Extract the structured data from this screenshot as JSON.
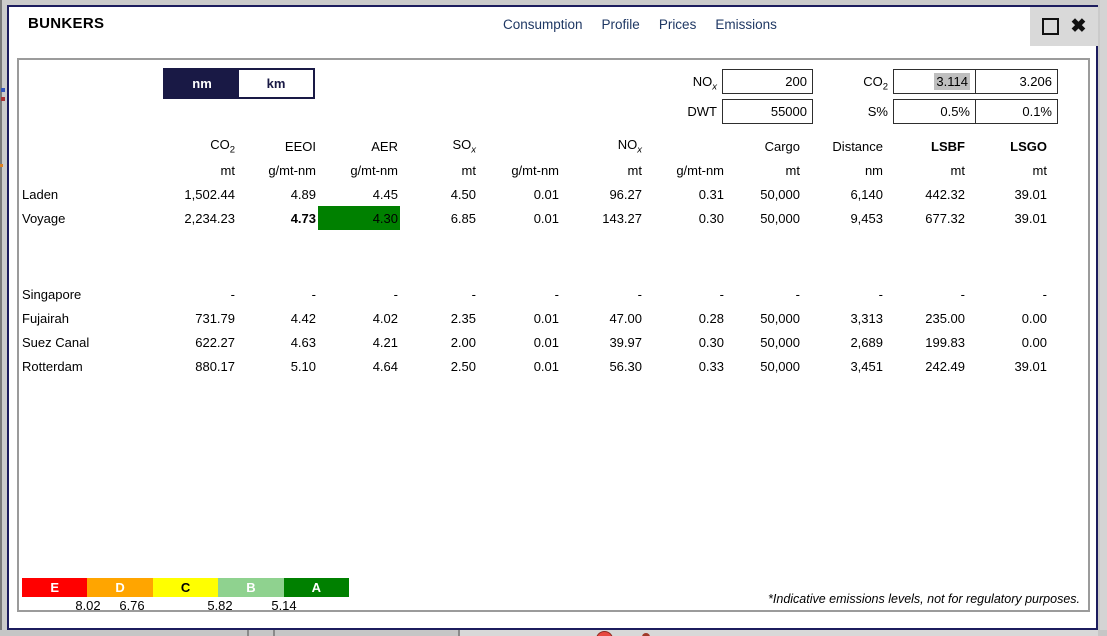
{
  "window": {
    "title": "BUNKERS",
    "nav": [
      "Consumption",
      "Profile",
      "Prices",
      "Emissions"
    ],
    "close_glyph": "✖"
  },
  "toggle": {
    "selected": "nm",
    "options": [
      "nm",
      "km"
    ]
  },
  "params": {
    "nox": {
      "base": "NO",
      "sub": "x",
      "value": "200"
    },
    "dwt": {
      "base": "DWT",
      "sub": "",
      "value": "55000"
    },
    "co2": {
      "base": "CO",
      "sub": "2",
      "value1": "3.114",
      "value2": "3.206",
      "value1_selected": true
    },
    "spct": {
      "base": "S%",
      "sub": "",
      "value1": "0.5%",
      "value2": "0.1%"
    }
  },
  "table": {
    "groups": [
      {
        "base": "CO",
        "sub": "2"
      },
      {
        "base": "EEOI",
        "sub": ""
      },
      {
        "base": "AER",
        "sub": ""
      },
      {
        "base": "SO",
        "sub": "x"
      },
      null,
      {
        "base": "NO",
        "sub": "x"
      },
      null,
      {
        "base": "Cargo",
        "sub": ""
      },
      {
        "base": "Distance",
        "sub": ""
      },
      {
        "base": "LSBF",
        "sub": "",
        "bold": true
      },
      {
        "base": "LSGO",
        "sub": "",
        "bold": true
      }
    ],
    "units": [
      "mt",
      "g/mt-nm",
      "g/mt-nm",
      "mt",
      "g/mt-nm",
      "mt",
      "g/mt-nm",
      "mt",
      "nm",
      "mt",
      "mt"
    ],
    "rows": [
      {
        "label": "Laden",
        "values": [
          "1,502.44",
          "4.89",
          "4.45",
          "4.50",
          "0.01",
          "96.27",
          "0.31",
          "50,000",
          "6,140",
          "442.32",
          "39.01"
        ]
      },
      {
        "label": "Voyage",
        "values": [
          "2,234.23",
          "4.73",
          "4.30",
          "6.85",
          "0.01",
          "143.27",
          "0.30",
          "50,000",
          "9,453",
          "677.32",
          "39.01"
        ],
        "bold": [
          1
        ],
        "highlight": {
          "index": 2,
          "color": "#008000"
        }
      },
      {
        "label": "Singapore",
        "gap_before": true,
        "values": [
          "-",
          "-",
          "-",
          "-",
          "-",
          "-",
          "-",
          "-",
          "-",
          "-",
          "-"
        ]
      },
      {
        "label": "Fujairah",
        "values": [
          "731.79",
          "4.42",
          "4.02",
          "2.35",
          "0.01",
          "47.00",
          "0.28",
          "50,000",
          "3,313",
          "235.00",
          "0.00"
        ]
      },
      {
        "label": "Suez Canal",
        "values": [
          "622.27",
          "4.63",
          "4.21",
          "2.00",
          "0.01",
          "39.97",
          "0.30",
          "50,000",
          "2,689",
          "199.83",
          "0.00"
        ]
      },
      {
        "label": "Rotterdam",
        "values": [
          "880.17",
          "5.10",
          "4.64",
          "2.50",
          "0.01",
          "56.30",
          "0.33",
          "50,000",
          "3,451",
          "242.49",
          "39.01"
        ]
      }
    ]
  },
  "rating_scale": {
    "bands": [
      {
        "label": "E",
        "color": "#ff0000",
        "text": "#ffffff"
      },
      {
        "label": "D",
        "color": "#ffa500",
        "text": "#ffffff"
      },
      {
        "label": "C",
        "color": "#ffff00",
        "text": "#000000"
      },
      {
        "label": "B",
        "color": "#8fd28f",
        "text": "#ffffff"
      },
      {
        "label": "A",
        "color": "#008000",
        "text": "#ffffff"
      }
    ],
    "thresholds": [
      "8.02",
      "6.76",
      "5.82",
      "5.14"
    ]
  },
  "footnote": "*Indicative emissions levels, not for regulatory purposes.",
  "colors": {
    "dialog_border": "#1c1c5e",
    "nav_text": "#1f3864",
    "toggle_selected_bg": "#191945",
    "highlight_green": "#008000",
    "input_selection": "#bfbfbf"
  }
}
